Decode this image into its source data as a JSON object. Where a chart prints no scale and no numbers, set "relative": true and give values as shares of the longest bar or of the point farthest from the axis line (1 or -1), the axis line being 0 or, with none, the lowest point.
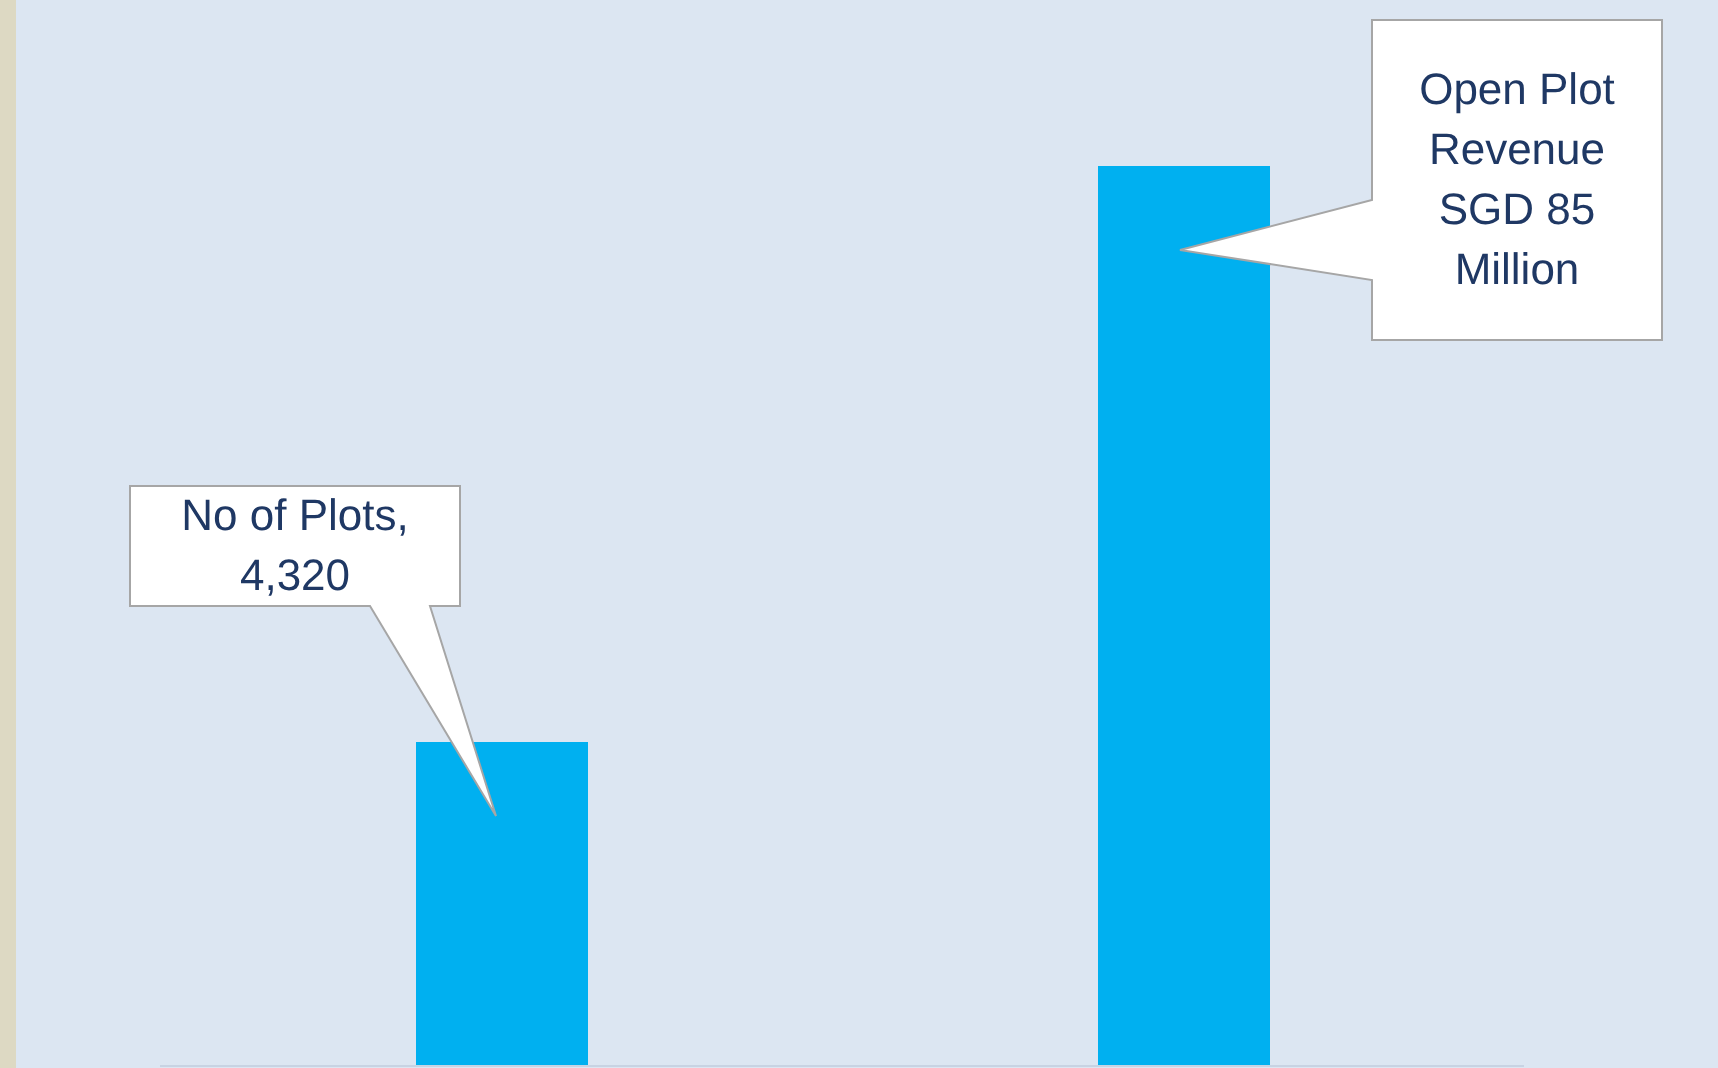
{
  "chart_data": {
    "type": "bar",
    "relative": true,
    "categories": [
      null,
      null
    ],
    "values": [
      0.36,
      1
    ],
    "color": "#00b0f0",
    "annotations": [
      "No of Plots, 4,320",
      "Open Plot Revenue SGD 85 Million"
    ]
  }
}
